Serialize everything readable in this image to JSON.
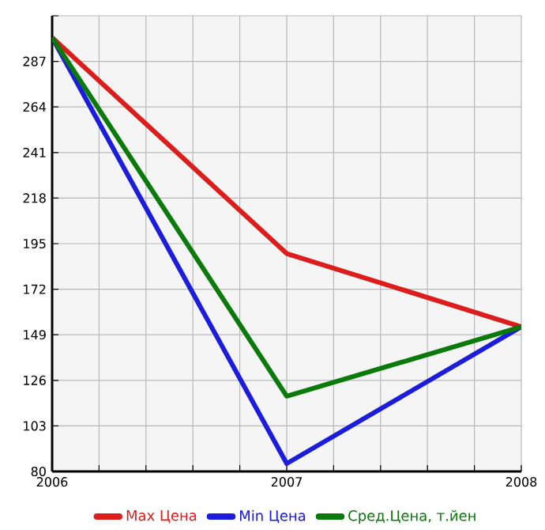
{
  "chart_data": {
    "type": "line",
    "x": [
      2006,
      2007,
      2008
    ],
    "series": [
      {
        "name": "Max Цена",
        "color": "#dd1c1c",
        "values": [
          299,
          190,
          153
        ]
      },
      {
        "name": "Min Цена",
        "color": "#1c1cdd",
        "values": [
          299,
          84,
          153
        ]
      },
      {
        "name": "Сред.Цена, т.йен",
        "color": "#0a7a0a",
        "values": [
          299,
          118,
          153
        ]
      }
    ],
    "xlim": [
      2006,
      2008
    ],
    "xticks": [
      2006,
      {
        "value": 2006.2,
        "label": null
      },
      {
        "value": 2006.4,
        "label": null
      },
      {
        "value": 2006.6,
        "label": null
      },
      {
        "value": 2006.8,
        "label": null
      },
      2007,
      {
        "value": 2007.2,
        "label": null
      },
      {
        "value": 2007.4,
        "label": null
      },
      {
        "value": 2007.6,
        "label": null
      },
      {
        "value": 2007.8,
        "label": null
      },
      2008
    ],
    "ylim": [
      80,
      310
    ],
    "yticks": [
      80,
      103,
      126,
      149,
      172,
      195,
      218,
      241,
      264,
      287,
      {
        "value": 310,
        "label": null
      }
    ],
    "grid": true,
    "legend": "bottom",
    "marker": "none",
    "line_style": "solid"
  }
}
